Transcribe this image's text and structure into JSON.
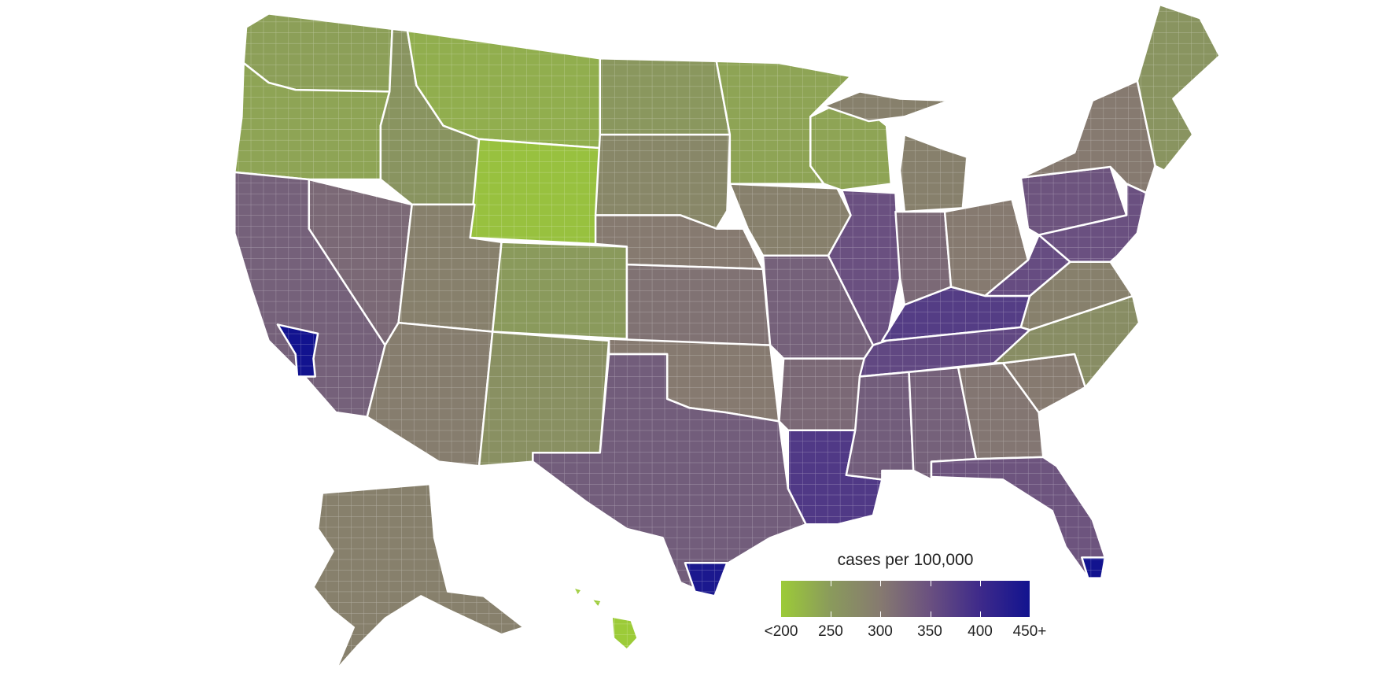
{
  "legend": {
    "title": "cases per 100,000",
    "labels": [
      "<200",
      "250",
      "300",
      "350",
      "400",
      "450+"
    ],
    "range": [
      200,
      450
    ],
    "color_stops": [
      "#9ccb38",
      "#8a9a5c",
      "#867a70",
      "#6a5080",
      "#3e2a8a",
      "#12138f"
    ]
  },
  "chart_data": {
    "type": "choropleth",
    "legend_title": "cases per 100,000",
    "scale_min": 200,
    "scale_max": 450,
    "missing_color": "#bdbdbd",
    "regions": [
      {
        "id": "WA",
        "value": 245
      },
      {
        "id": "OR",
        "value": 240
      },
      {
        "id": "CA",
        "value": 330
      },
      {
        "id": "NV",
        "value": 320
      },
      {
        "id": "ID",
        "value": 260
      },
      {
        "id": "MT",
        "value": 230
      },
      {
        "id": "WY",
        "value": 210
      },
      {
        "id": "UT",
        "value": 290
      },
      {
        "id": "CO",
        "value": 250
      },
      {
        "id": "AZ",
        "value": 295
      },
      {
        "id": "NM",
        "value": 265
      },
      {
        "id": "ND",
        "value": 255
      },
      {
        "id": "SD",
        "value": 280
      },
      {
        "id": "NE",
        "value": 300
      },
      {
        "id": "KS",
        "value": 310
      },
      {
        "id": "OK",
        "value": 300
      },
      {
        "id": "TX",
        "value": 335
      },
      {
        "id": "MN",
        "value": 240
      },
      {
        "id": "IA",
        "value": 290
      },
      {
        "id": "MO",
        "value": 330
      },
      {
        "id": "AR",
        "value": 320
      },
      {
        "id": "LA",
        "value": 380
      },
      {
        "id": "WI",
        "value": 240
      },
      {
        "id": "IL",
        "value": 350
      },
      {
        "id": "MI",
        "value": 290
      },
      {
        "id": "IN",
        "value": 320
      },
      {
        "id": "OH",
        "value": 300
      },
      {
        "id": "KY",
        "value": 375
      },
      {
        "id": "TN",
        "value": 360
      },
      {
        "id": "MS",
        "value": 335
      },
      {
        "id": "AL",
        "value": 330
      },
      {
        "id": "GA",
        "value": 305
      },
      {
        "id": "FL",
        "value": 345
      },
      {
        "id": "SC",
        "value": 300
      },
      {
        "id": "NC",
        "value": 270
      },
      {
        "id": "VA",
        "value": 290
      },
      {
        "id": "WV",
        "value": 355
      },
      {
        "id": "PA",
        "value": 345
      },
      {
        "id": "NY",
        "value": 300
      },
      {
        "id": "NEW-ENGLAND",
        "value": 260
      },
      {
        "id": "MID-ATLANTIC",
        "value": 350
      },
      {
        "id": "AK",
        "value": 290
      },
      {
        "id": "HI",
        "value": 200
      },
      {
        "id": "SOCAL-HOTSPOT",
        "value": 450
      },
      {
        "id": "MIAMI-HOTSPOT",
        "value": 450
      },
      {
        "id": "SOUTH-TX-HOTSPOT",
        "value": 440
      }
    ]
  }
}
